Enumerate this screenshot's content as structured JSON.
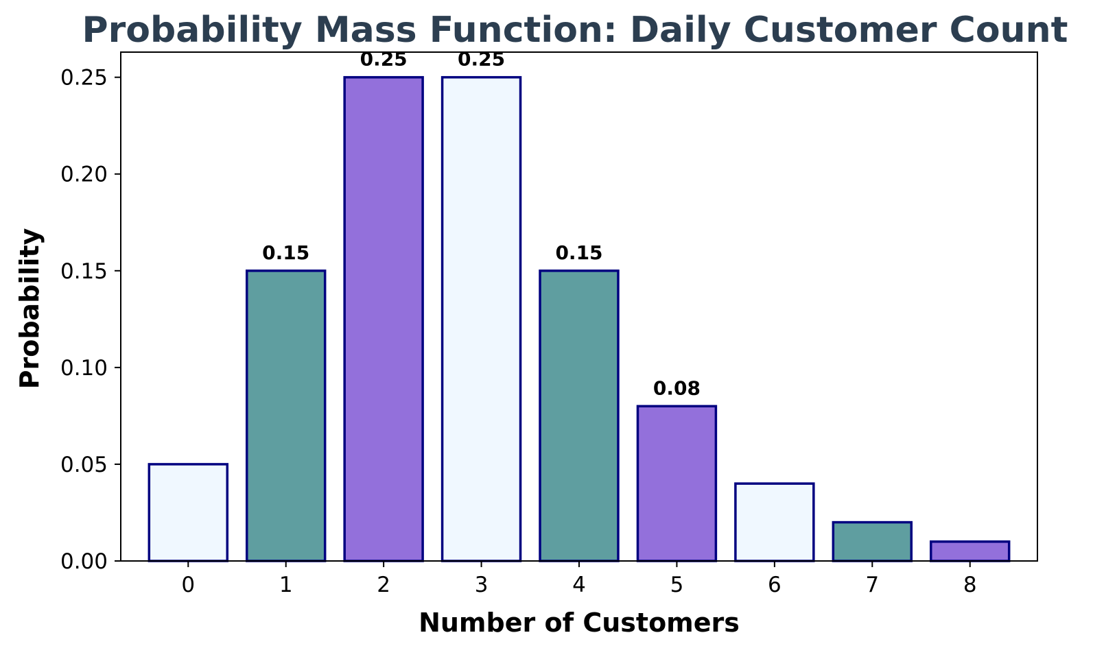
{
  "chart_data": {
    "type": "bar",
    "title": "Probability Mass Function: Daily Customer Count",
    "xlabel": "Number of Customers",
    "ylabel": "Probability",
    "categories": [
      "0",
      "1",
      "2",
      "3",
      "4",
      "5",
      "6",
      "7",
      "8"
    ],
    "values": [
      0.05,
      0.15,
      0.25,
      0.25,
      0.15,
      0.08,
      0.04,
      0.02,
      0.01
    ],
    "data_labels": [
      "",
      "0.15",
      "0.25",
      "0.25",
      "0.15",
      "0.08",
      "",
      "",
      ""
    ],
    "ylim": [
      0,
      0.263
    ],
    "yticks": [
      "0.00",
      "0.05",
      "0.10",
      "0.15",
      "0.20",
      "0.25"
    ],
    "grid": false,
    "colors": {
      "title": "#2c3e50",
      "bar_edge": "#000080",
      "bar_fills": [
        "#f0f8ff",
        "#5f9ea0",
        "#9370db"
      ]
    }
  }
}
